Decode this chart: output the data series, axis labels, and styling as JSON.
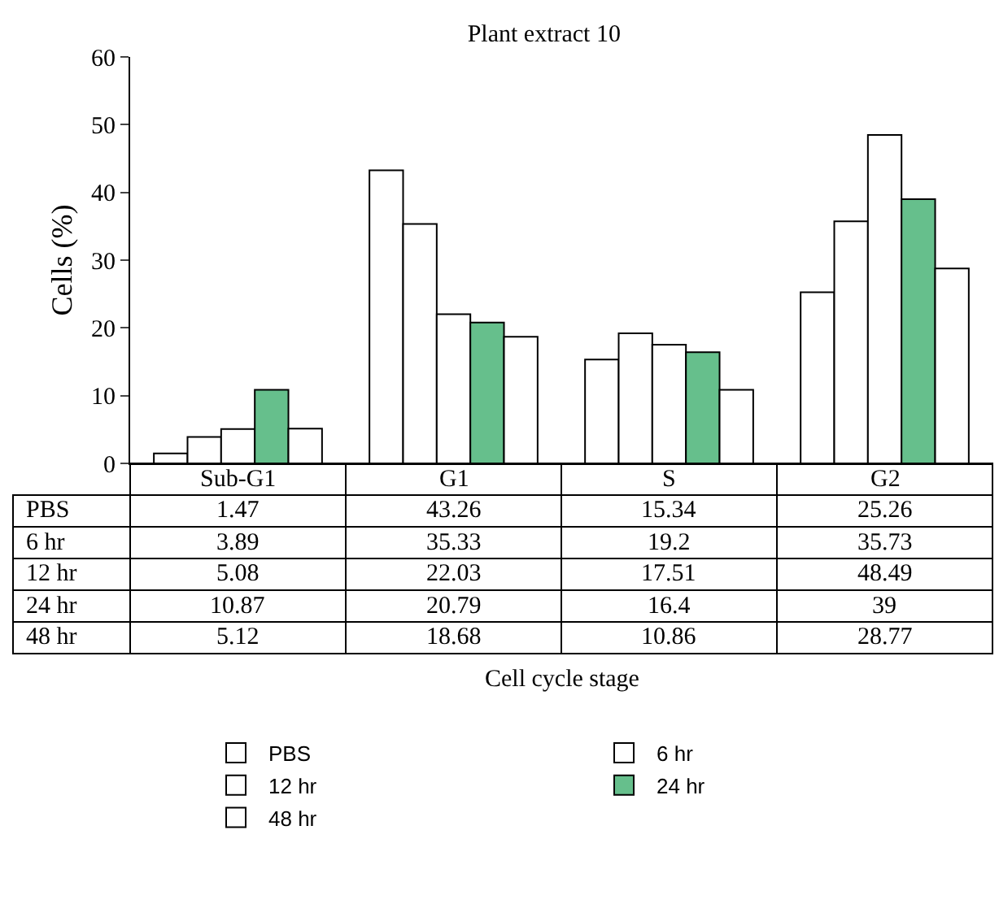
{
  "chart_data": {
    "type": "bar",
    "title": "Plant extract 10",
    "ylabel": "Cells (%)",
    "annotations": [
      "Cell cycle stage"
    ],
    "categories": [
      "Sub-G1",
      "G1",
      "S",
      "G2"
    ],
    "series": [
      {
        "name": "PBS",
        "color": "#ffffff",
        "values": [
          1.47,
          43.26,
          15.34,
          25.26
        ]
      },
      {
        "name": "6 hr",
        "color": "#ffffff",
        "values": [
          3.89,
          35.33,
          19.2,
          35.73
        ]
      },
      {
        "name": "12 hr",
        "color": "#ffffff",
        "values": [
          5.08,
          22.03,
          17.51,
          48.49
        ]
      },
      {
        "name": "24 hr",
        "color": "#66bf8c",
        "values": [
          10.87,
          20.79,
          16.4,
          39
        ]
      },
      {
        "name": "48 hr",
        "color": "#ffffff",
        "values": [
          5.12,
          18.68,
          10.86,
          28.77
        ]
      }
    ],
    "ylim": [
      0,
      60
    ],
    "yticks": [
      0,
      10,
      20,
      30,
      40,
      50,
      60
    ],
    "legend": "bottom",
    "tick_labels": "y",
    "data_labels": true
  }
}
